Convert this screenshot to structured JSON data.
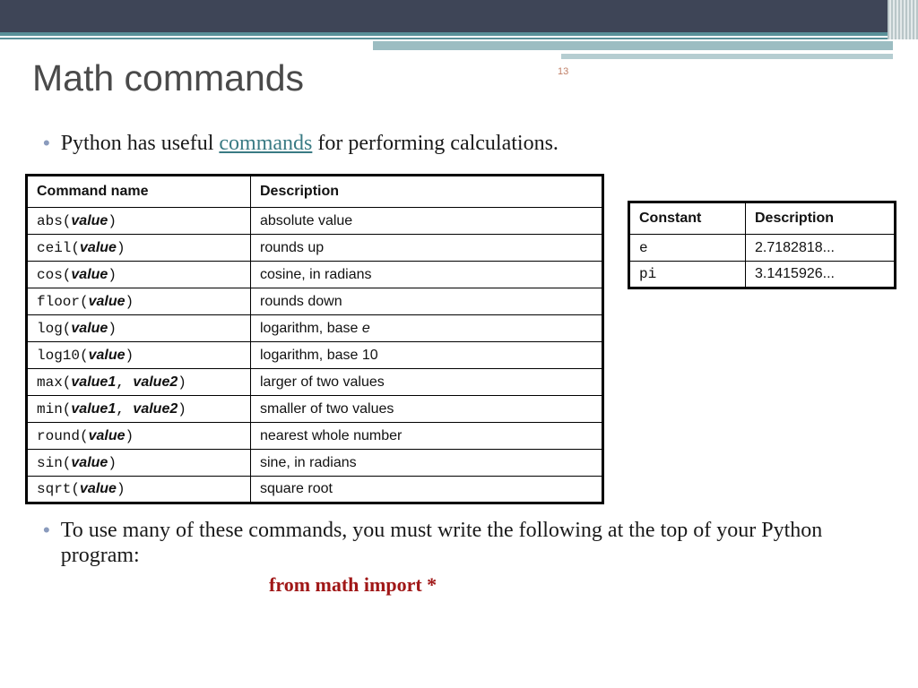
{
  "page_number": "13",
  "header": {
    "title": "Math commands",
    "colors": {
      "top_band": "#3e4557",
      "teal": "#5a9199",
      "title_color": "#4a4a4a"
    }
  },
  "bullet1": {
    "pre": "Python has useful ",
    "link_text": "commands",
    "post": " for performing calculations."
  },
  "commands_table": {
    "headers": [
      "Command name",
      "Description"
    ],
    "rows": [
      {
        "fn": "abs",
        "args": [
          "value"
        ],
        "desc": "absolute value"
      },
      {
        "fn": "ceil",
        "args": [
          "value"
        ],
        "desc": "rounds up"
      },
      {
        "fn": "cos",
        "args": [
          "value"
        ],
        "desc": "cosine, in radians"
      },
      {
        "fn": "floor",
        "args": [
          "value"
        ],
        "desc": "rounds down"
      },
      {
        "fn": "log",
        "args": [
          "value"
        ],
        "desc": "logarithm, base e",
        "desc_ital_last": true
      },
      {
        "fn": "log10",
        "args": [
          "value"
        ],
        "desc": "logarithm, base 10"
      },
      {
        "fn": "max",
        "args": [
          "value1",
          "value2"
        ],
        "desc": "larger of two values"
      },
      {
        "fn": "min",
        "args": [
          "value1",
          "value2"
        ],
        "desc": "smaller of two values"
      },
      {
        "fn": "round",
        "args": [
          "value"
        ],
        "desc": "nearest whole number"
      },
      {
        "fn": "sin",
        "args": [
          "value"
        ],
        "desc": "sine, in radians"
      },
      {
        "fn": "sqrt",
        "args": [
          "value"
        ],
        "desc": "square root"
      }
    ]
  },
  "constants_table": {
    "headers": [
      "Constant",
      "Description"
    ],
    "rows": [
      {
        "name": "e",
        "value": "2.7182818..."
      },
      {
        "name": "pi",
        "value": "3.1415926..."
      }
    ]
  },
  "bullet2": "To use many of these commands, you must write the following at the top of your Python program:",
  "import_stmt": "from math import *",
  "style": {
    "fonts": {
      "title": "Verdana",
      "body": "Georgia",
      "code": "Courier New"
    },
    "border_color": "#000000",
    "link_color": "#3a7b84",
    "import_color": "#a01717",
    "bullet_color": "#8a9bbd"
  }
}
